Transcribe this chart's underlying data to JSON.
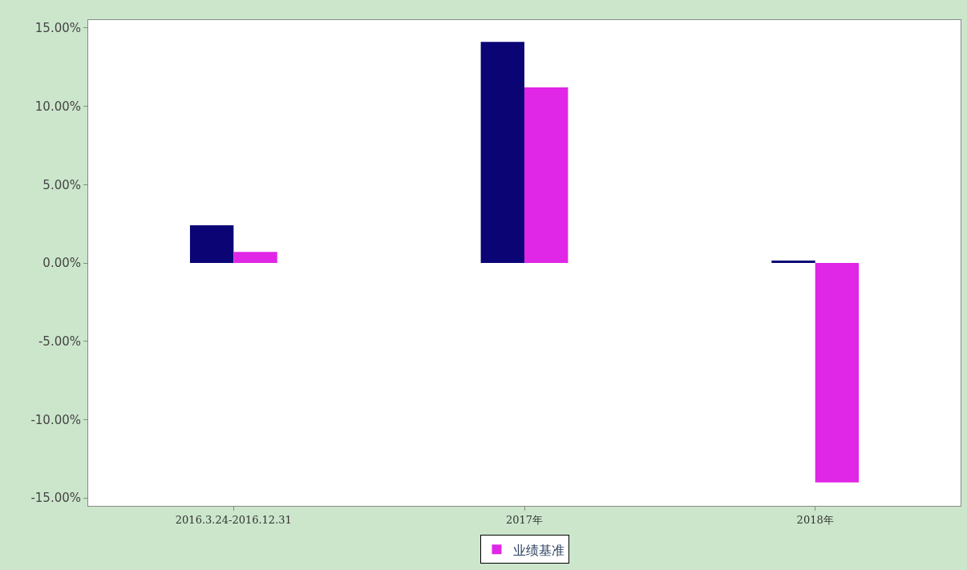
{
  "chart_data": {
    "type": "bar",
    "categories": [
      "2016.3.24-2016.12.31",
      "2017年",
      "2018年"
    ],
    "series": [
      {
        "color": "#0a0475",
        "values": [
          2.4,
          14.1,
          0.15
        ]
      },
      {
        "name": "业绩基准",
        "color": "#e026e6",
        "values": [
          0.7,
          11.2,
          -14.0
        ]
      }
    ],
    "ylim": [
      -15.5,
      15.5
    ],
    "yticks": [
      {
        "value": -15,
        "label": "-15.00%"
      },
      {
        "value": -10,
        "label": "-10.00%"
      },
      {
        "value": -5,
        "label": "-5.00%"
      },
      {
        "value": 0,
        "label": "0.00%"
      },
      {
        "value": 5,
        "label": "5.00%"
      },
      {
        "value": 10,
        "label": "10.00%"
      },
      {
        "value": 15,
        "label": "15.00%"
      }
    ],
    "legend": "bottom"
  }
}
